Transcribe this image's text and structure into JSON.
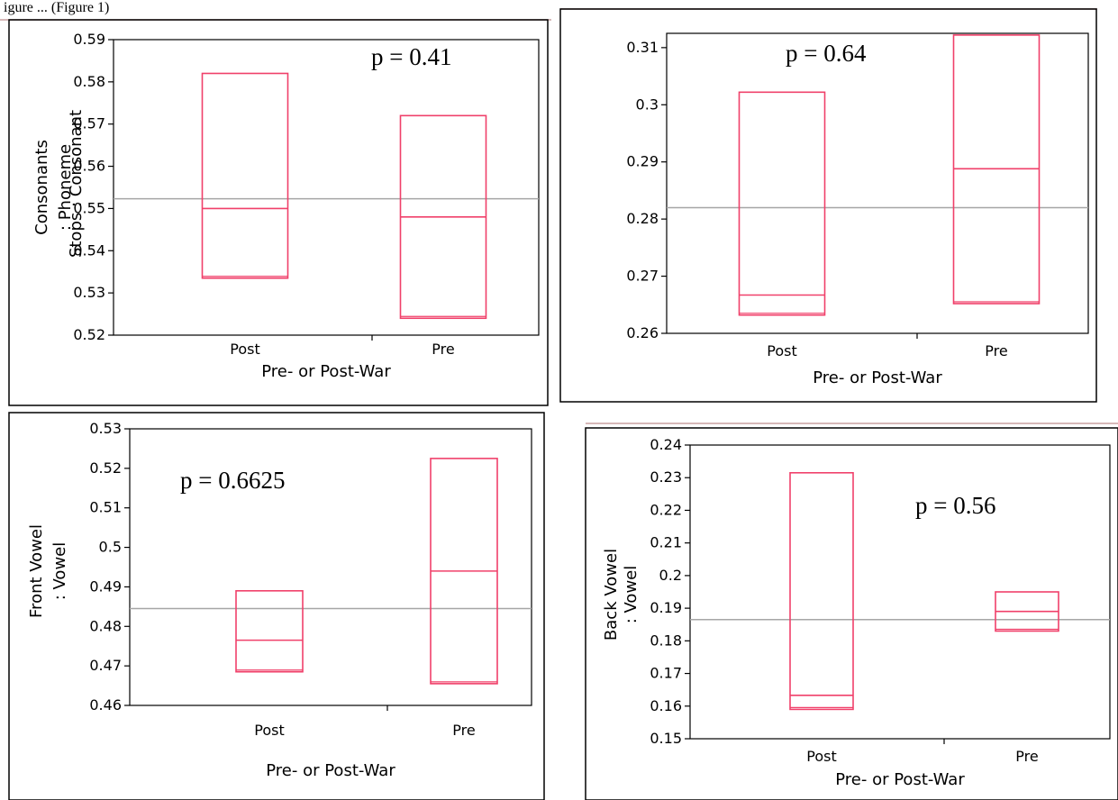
{
  "figure": {
    "caption_fragment": "igure ... (Figure 1)",
    "colors": {
      "box": "#f0406a",
      "mean_line": "#a6a6a6",
      "frame": "#000000",
      "separator": "#c9a0a0"
    }
  },
  "chart_data": [
    {
      "type": "box",
      "ylabel": [
        "Consonants",
        ": Phoneme"
      ],
      "xlabel": "Pre- or Post-War",
      "categories": [
        "Post",
        "Pre"
      ],
      "ylim": [
        0.52,
        0.59
      ],
      "yticks": [
        0.52,
        0.53,
        0.54,
        0.55,
        0.56,
        0.57,
        0.58,
        0.59
      ],
      "ytick_labels": [
        "0.52",
        "0.53",
        "0.54",
        "0.55",
        "0.56",
        "0.57",
        "0.58",
        "0.59"
      ],
      "boxes": [
        {
          "category": "Post",
          "q1": 0.5335,
          "median": 0.55,
          "q3": 0.582
        },
        {
          "category": "Pre",
          "q1": 0.524,
          "median": 0.548,
          "q3": 0.572
        }
      ],
      "grand_mean": 0.5523,
      "annotation": "p = 0.41"
    },
    {
      "type": "box",
      "ylabel": [
        "Stops : Consonant"
      ],
      "xlabel": "Pre- or Post-War",
      "categories": [
        "Post",
        "Pre"
      ],
      "ylim": [
        0.26,
        0.3125
      ],
      "yticks": [
        0.26,
        0.27,
        0.28,
        0.29,
        0.3,
        0.31
      ],
      "ytick_labels": [
        "0.26",
        "0.27",
        "0.28",
        "0.29",
        "0.3",
        "0.31"
      ],
      "boxes": [
        {
          "category": "Post",
          "q1": 0.2632,
          "median": 0.2667,
          "q3": 0.3022
        },
        {
          "category": "Pre",
          "q1": 0.2652,
          "median": 0.2888,
          "q3": 0.3122
        }
      ],
      "grand_mean": 0.282,
      "annotation": "p = 0.64"
    },
    {
      "type": "box",
      "ylabel": [
        "Front Vowel",
        ": Vowel"
      ],
      "xlabel": "Pre- or Post-War",
      "categories": [
        "Post",
        "Pre"
      ],
      "ylim": [
        0.46,
        0.53
      ],
      "yticks": [
        0.46,
        0.47,
        0.48,
        0.49,
        0.5,
        0.51,
        0.52,
        0.53
      ],
      "ytick_labels": [
        "0.46",
        "0.47",
        "0.48",
        "0.49",
        "0.5",
        "0.51",
        "0.52",
        "0.53"
      ],
      "boxes": [
        {
          "category": "Post",
          "q1": 0.4685,
          "median": 0.4765,
          "q3": 0.489
        },
        {
          "category": "Pre",
          "q1": 0.4655,
          "median": 0.494,
          "q3": 0.5225
        }
      ],
      "grand_mean": 0.4845,
      "annotation": "p = 0.6625"
    },
    {
      "type": "box",
      "ylabel": [
        "Back Vowel",
        ": Vowel"
      ],
      "xlabel": "Pre- or Post-War",
      "categories": [
        "Post",
        "Pre"
      ],
      "ylim": [
        0.15,
        0.24
      ],
      "yticks": [
        0.15,
        0.16,
        0.17,
        0.18,
        0.19,
        0.2,
        0.21,
        0.22,
        0.23,
        0.24
      ],
      "ytick_labels": [
        "0.15",
        "0.16",
        "0.17",
        "0.18",
        "0.19",
        "0.2",
        "0.21",
        "0.22",
        "0.23",
        "0.24"
      ],
      "boxes": [
        {
          "category": "Post",
          "q1": 0.159,
          "median": 0.1633,
          "q3": 0.2315
        },
        {
          "category": "Pre",
          "q1": 0.183,
          "median": 0.189,
          "q3": 0.195
        }
      ],
      "grand_mean": 0.1865,
      "annotation": "p = 0.56"
    }
  ]
}
